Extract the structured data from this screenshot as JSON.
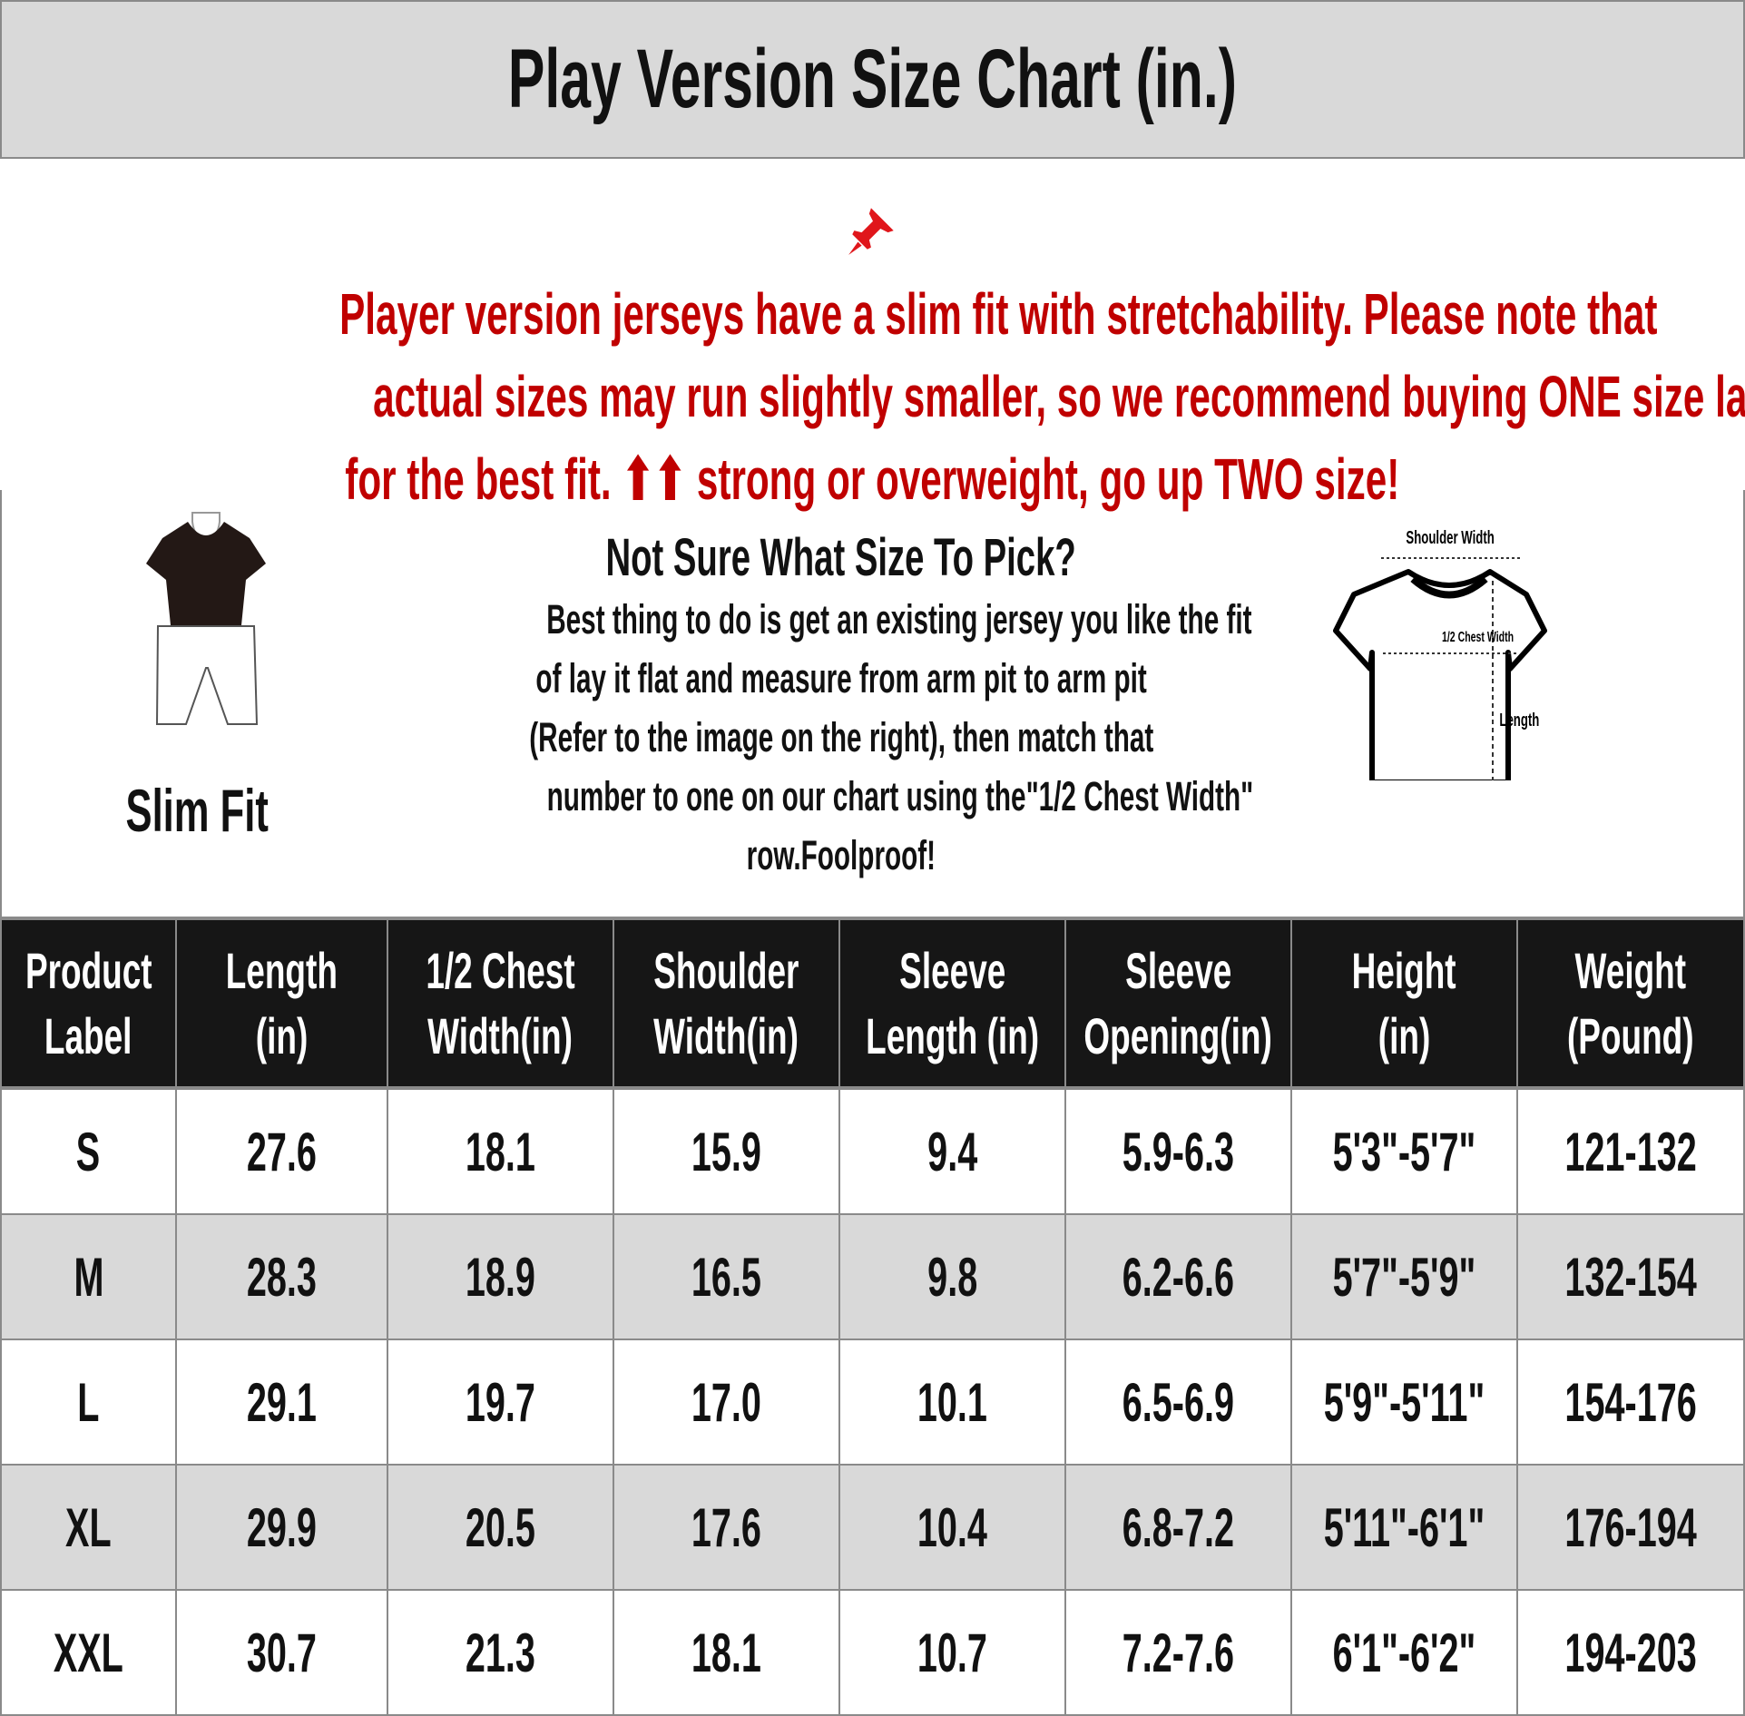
{
  "title": "Play Version Size Chart (in.)",
  "notice": {
    "icon": "pushpin-icon",
    "lines": [
      "Player version jerseys have a slim fit with stretchability. Please note that",
      "actual sizes may run slightly smaller, so we recommend buying ONE size larger",
      "for the best fit. ⬆⬆ strong or overweight, go up TWO size!"
    ],
    "color": "#c00000"
  },
  "fit": {
    "label": "Slim Fit",
    "icon": "slim-fit-figure-icon"
  },
  "help": {
    "title": "Not Sure What Size To Pick?",
    "lines": [
      "Best thing to do is get an existing jersey you like the fit",
      "of lay it flat and measure from arm pit to arm pit",
      "(Refer to the image on the right), then match that",
      "number to one on our chart using the\"1/2 Chest Width\"",
      "row.Foolproof!"
    ]
  },
  "diagram": {
    "shoulder": "Shoulder Width",
    "chest": "1/2 Chest Width",
    "length": "Length"
  },
  "table": {
    "headers": [
      [
        "Product",
        "Label"
      ],
      [
        "Length",
        "(in)"
      ],
      [
        "1/2 Chest",
        "Width(in)"
      ],
      [
        "Shoulder",
        "Width(in)"
      ],
      [
        "Sleeve",
        "Length (in)"
      ],
      [
        "Sleeve",
        "Opening(in)"
      ],
      [
        "Height",
        "(in)"
      ],
      [
        "Weight",
        "(Pound)"
      ]
    ],
    "rows": [
      [
        "S",
        "27.6",
        "18.1",
        "15.9",
        "9.4",
        "5.9-6.3",
        "5'3\"-5'7\"",
        "121-132"
      ],
      [
        "M",
        "28.3",
        "18.9",
        "16.5",
        "9.8",
        "6.2-6.6",
        "5'7\"-5'9\"",
        "132-154"
      ],
      [
        "L",
        "29.1",
        "19.7",
        "17.0",
        "10.1",
        "6.5-6.9",
        "5'9\"-5'11\"",
        "154-176"
      ],
      [
        "XL",
        "29.9",
        "20.5",
        "17.6",
        "10.4",
        "6.8-7.2",
        "5'11\"-6'1\"",
        "176-194"
      ],
      [
        "XXL",
        "30.7",
        "21.3",
        "18.1",
        "10.7",
        "7.2-7.6",
        "6'1\"-6'2\"",
        "194-203"
      ]
    ]
  }
}
